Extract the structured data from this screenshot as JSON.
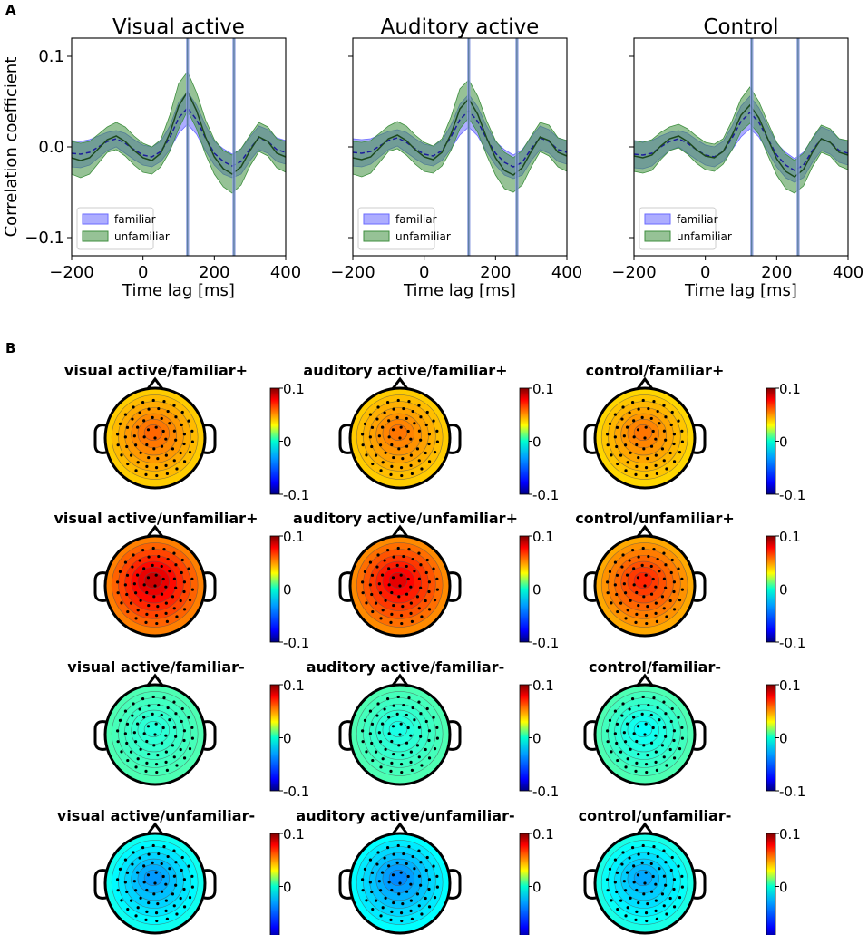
{
  "panel_labels": {
    "a": "A",
    "b": "B"
  },
  "colors": {
    "familiar": "#6a6aff",
    "unfamiliar": "#3f8f3f",
    "mean_familiar": "#1c1c9c",
    "mean_unfamiliar": "#1d4a1d",
    "marker_line": "#8e9fe2"
  },
  "chart_data": [
    {
      "type": "line",
      "panel": "A",
      "ylabel": "Correlation coefficient",
      "xlabel": "Time lag [ms]",
      "xlim": [
        -200,
        400
      ],
      "ylim": [
        -0.12,
        0.12
      ],
      "xticks": [
        -200,
        0,
        200,
        400
      ],
      "yticks": [
        0.1,
        0.0,
        -0.1
      ],
      "ytick_labels": [
        "0.1",
        "0.0",
        "−0.1"
      ],
      "xtick_labels": [
        "−200",
        "0",
        "200",
        "400"
      ],
      "legend": [
        "familiar",
        "unfamiliar"
      ],
      "legend_position": "lower-left",
      "x": [
        -200,
        -175,
        -150,
        -125,
        -100,
        -75,
        -50,
        -25,
        0,
        25,
        50,
        75,
        100,
        125,
        150,
        175,
        200,
        225,
        250,
        275,
        300,
        325,
        350,
        375,
        400
      ],
      "subplots": [
        {
          "title": "Visual active",
          "vlines": [
            125,
            255
          ],
          "series": [
            {
              "name": "familiar",
              "mean": [
                -0.007,
                -0.008,
                -0.006,
                0.0,
                0.006,
                0.009,
                0.004,
                -0.003,
                -0.009,
                -0.011,
                -0.005,
                0.01,
                0.032,
                0.043,
                0.03,
                0.01,
                -0.007,
                -0.016,
                -0.021,
                -0.016,
                -0.002,
                0.01,
                0.006,
                -0.003,
                -0.006
              ],
              "lower": [
                -0.022,
                -0.023,
                -0.02,
                -0.012,
                -0.004,
                0.0,
                -0.007,
                -0.014,
                -0.02,
                -0.022,
                -0.016,
                -0.003,
                0.015,
                0.025,
                0.014,
                -0.004,
                -0.02,
                -0.03,
                -0.034,
                -0.03,
                -0.015,
                -0.003,
                -0.007,
                -0.016,
                -0.019
              ],
              "upper": [
                0.007,
                0.006,
                0.008,
                0.012,
                0.016,
                0.018,
                0.015,
                0.008,
                0.002,
                0.0,
                0.006,
                0.023,
                0.049,
                0.061,
                0.046,
                0.024,
                0.006,
                -0.002,
                -0.008,
                -0.002,
                0.011,
                0.023,
                0.019,
                0.01,
                0.007
              ]
            },
            {
              "name": "unfamiliar",
              "mean": [
                -0.012,
                -0.015,
                -0.012,
                -0.002,
                0.008,
                0.012,
                0.006,
                -0.004,
                -0.012,
                -0.015,
                -0.007,
                0.015,
                0.045,
                0.061,
                0.04,
                0.011,
                -0.011,
                -0.024,
                -0.03,
                -0.022,
                -0.004,
                0.011,
                0.006,
                -0.007,
                -0.011
              ],
              "lower": [
                -0.03,
                -0.034,
                -0.03,
                -0.018,
                -0.006,
                -0.003,
                -0.01,
                -0.02,
                -0.028,
                -0.03,
                -0.022,
                -0.005,
                0.02,
                0.04,
                0.02,
                -0.008,
                -0.03,
                -0.044,
                -0.051,
                -0.042,
                -0.021,
                -0.005,
                -0.01,
                -0.023,
                -0.028
              ],
              "upper": [
                0.006,
                0.004,
                0.006,
                0.014,
                0.022,
                0.027,
                0.022,
                0.012,
                0.004,
                0.0,
                0.008,
                0.035,
                0.07,
                0.083,
                0.06,
                0.03,
                0.008,
                -0.004,
                -0.009,
                -0.002,
                0.013,
                0.027,
                0.022,
                0.009,
                0.006
              ]
            }
          ]
        },
        {
          "title": "Auditory active",
          "vlines": [
            125,
            260
          ],
          "series": [
            {
              "name": "familiar",
              "mean": [
                -0.006,
                -0.007,
                -0.005,
                0.001,
                0.007,
                0.01,
                0.005,
                -0.002,
                -0.008,
                -0.01,
                -0.004,
                0.011,
                0.03,
                0.04,
                0.028,
                0.009,
                -0.007,
                -0.017,
                -0.022,
                -0.017,
                -0.002,
                0.01,
                0.006,
                -0.003,
                -0.006
              ],
              "lower": [
                -0.021,
                -0.022,
                -0.019,
                -0.011,
                -0.003,
                0.001,
                -0.006,
                -0.013,
                -0.019,
                -0.021,
                -0.015,
                -0.002,
                0.013,
                0.022,
                0.012,
                -0.005,
                -0.02,
                -0.031,
                -0.035,
                -0.031,
                -0.015,
                -0.003,
                -0.007,
                -0.016,
                -0.019
              ],
              "upper": [
                0.009,
                0.008,
                0.009,
                0.013,
                0.017,
                0.019,
                0.016,
                0.009,
                0.003,
                0.001,
                0.007,
                0.024,
                0.047,
                0.058,
                0.044,
                0.023,
                0.006,
                -0.003,
                -0.009,
                -0.003,
                0.011,
                0.023,
                0.019,
                0.01,
                0.007
              ]
            },
            {
              "name": "unfamiliar",
              "mean": [
                -0.012,
                -0.014,
                -0.011,
                -0.001,
                0.009,
                0.013,
                0.007,
                -0.003,
                -0.011,
                -0.014,
                -0.006,
                0.014,
                0.042,
                0.053,
                0.036,
                0.01,
                -0.012,
                -0.026,
                -0.031,
                -0.023,
                -0.005,
                0.011,
                0.007,
                -0.006,
                -0.01
              ],
              "lower": [
                -0.03,
                -0.033,
                -0.029,
                -0.017,
                -0.005,
                -0.002,
                -0.009,
                -0.019,
                -0.027,
                -0.029,
                -0.021,
                -0.004,
                0.02,
                0.032,
                0.016,
                -0.009,
                -0.031,
                -0.046,
                -0.05,
                -0.042,
                -0.022,
                -0.005,
                -0.01,
                -0.022,
                -0.027
              ],
              "upper": [
                0.006,
                0.005,
                0.007,
                0.015,
                0.023,
                0.028,
                0.023,
                0.013,
                0.005,
                0.001,
                0.009,
                0.033,
                0.064,
                0.074,
                0.056,
                0.029,
                0.007,
                -0.006,
                -0.012,
                -0.004,
                0.012,
                0.027,
                0.024,
                0.01,
                0.007
              ]
            }
          ]
        },
        {
          "title": "Control",
          "vlines": [
            130,
            260
          ],
          "series": [
            {
              "name": "familiar",
              "mean": [
                -0.008,
                -0.009,
                -0.007,
                0.0,
                0.006,
                0.009,
                0.004,
                -0.003,
                -0.009,
                -0.011,
                -0.005,
                0.01,
                0.028,
                0.038,
                0.027,
                0.009,
                -0.009,
                -0.02,
                -0.026,
                -0.02,
                -0.004,
                0.009,
                0.005,
                -0.004,
                -0.007
              ],
              "lower": [
                -0.023,
                -0.024,
                -0.021,
                -0.012,
                -0.004,
                0.0,
                -0.007,
                -0.014,
                -0.02,
                -0.022,
                -0.016,
                -0.003,
                0.011,
                0.02,
                0.011,
                -0.005,
                -0.022,
                -0.034,
                -0.039,
                -0.034,
                -0.017,
                -0.004,
                -0.008,
                -0.017,
                -0.02
              ],
              "upper": [
                0.007,
                0.006,
                0.007,
                0.012,
                0.016,
                0.018,
                0.015,
                0.008,
                0.002,
                0.0,
                0.006,
                0.023,
                0.045,
                0.056,
                0.043,
                0.023,
                0.004,
                -0.006,
                -0.013,
                -0.006,
                0.009,
                0.022,
                0.018,
                0.009,
                0.006
              ]
            },
            {
              "name": "unfamiliar",
              "mean": [
                -0.01,
                -0.012,
                -0.009,
                0.001,
                0.009,
                0.012,
                0.006,
                -0.003,
                -0.01,
                -0.012,
                -0.005,
                0.013,
                0.035,
                0.046,
                0.032,
                0.009,
                -0.013,
                -0.027,
                -0.033,
                -0.025,
                -0.006,
                0.009,
                0.005,
                -0.006,
                -0.009
              ],
              "lower": [
                -0.027,
                -0.029,
                -0.026,
                -0.014,
                -0.004,
                -0.001,
                -0.008,
                -0.018,
                -0.025,
                -0.027,
                -0.019,
                -0.003,
                0.017,
                0.026,
                0.014,
                -0.009,
                -0.031,
                -0.046,
                -0.051,
                -0.043,
                -0.022,
                -0.006,
                -0.01,
                -0.021,
                -0.025
              ],
              "upper": [
                0.007,
                0.005,
                0.008,
                0.016,
                0.022,
                0.025,
                0.02,
                0.012,
                0.005,
                0.003,
                0.009,
                0.029,
                0.053,
                0.066,
                0.05,
                0.027,
                0.005,
                -0.008,
                -0.015,
                -0.007,
                0.01,
                0.024,
                0.02,
                0.009,
                0.007
              ]
            }
          ]
        }
      ]
    },
    {
      "type": "heatmap",
      "panel": "B",
      "description_kind": "scalp topography",
      "colorbar_range": [
        -0.1,
        0.1
      ],
      "colorbar_ticks": [
        "0.1",
        "0",
        "-0.1"
      ],
      "colorbar_tick_values": [
        0.1,
        0,
        -0.1
      ],
      "rows": [
        {
          "maps": [
            {
              "title": "visual active/familiar+",
              "center_value": 0.055,
              "edge_value": 0.035,
              "sensors": 64
            },
            {
              "title": "auditory active/familiar+",
              "center_value": 0.052,
              "edge_value": 0.035,
              "sensors": 64
            },
            {
              "title": "control/familiar+",
              "center_value": 0.052,
              "edge_value": 0.033,
              "sensors": 64
            }
          ]
        },
        {
          "maps": [
            {
              "title": "visual active/unfamiliar+",
              "center_value": 0.085,
              "edge_value": 0.05,
              "sensors": 64
            },
            {
              "title": "auditory active/unfamiliar+",
              "center_value": 0.08,
              "edge_value": 0.048,
              "sensors": 64
            },
            {
              "title": "control/unfamiliar+",
              "center_value": 0.068,
              "edge_value": 0.042,
              "sensors": 64
            }
          ]
        },
        {
          "maps": [
            {
              "title": "visual active/familiar-",
              "center_value": -0.018,
              "edge_value": -0.01,
              "sensors": 64
            },
            {
              "title": "auditory active/familiar-",
              "center_value": -0.02,
              "edge_value": -0.01,
              "sensors": 64
            },
            {
              "title": "control/familiar-",
              "center_value": -0.024,
              "edge_value": -0.01,
              "sensors": 64
            }
          ]
        },
        {
          "maps": [
            {
              "title": "visual active/unfamiliar-",
              "center_value": -0.045,
              "edge_value": -0.022,
              "sensors": 64
            },
            {
              "title": "auditory active/unfamiliar-",
              "center_value": -0.048,
              "edge_value": -0.025,
              "sensors": 64
            },
            {
              "title": "control/unfamiliar-",
              "center_value": -0.042,
              "edge_value": -0.02,
              "sensors": 64
            }
          ]
        }
      ]
    }
  ]
}
